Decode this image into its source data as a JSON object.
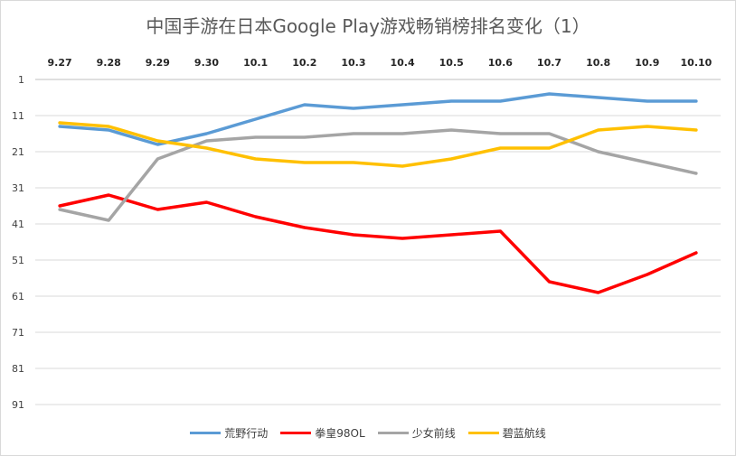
{
  "chart_data": {
    "type": "line",
    "title": "中国手游在日本Google Play游戏畅销榜排名变化（1）",
    "xlabel": "",
    "ylabel": "",
    "x": [
      "9.27",
      "9.28",
      "9.29",
      "9.30",
      "10.1",
      "10.2",
      "10.3",
      "10.4",
      "10.5",
      "10.6",
      "10.7",
      "10.8",
      "10.9",
      "10.10"
    ],
    "y_ticks": [
      1,
      11,
      21,
      31,
      41,
      51,
      61,
      71,
      81,
      91
    ],
    "ylim": [
      1,
      101
    ],
    "y_inverted": true,
    "x_axis_position": "top",
    "grid": true,
    "legend_position": "bottom",
    "series": [
      {
        "name": "荒野行动",
        "color": "#5b9bd5",
        "values": [
          14,
          15,
          19,
          16,
          12,
          8,
          9,
          8,
          7,
          7,
          5,
          6,
          7,
          7
        ]
      },
      {
        "name": "拳皇98OL",
        "color": "#ff0000",
        "values": [
          36,
          33,
          37,
          35,
          39,
          42,
          44,
          45,
          44,
          43,
          57,
          60,
          55,
          49
        ]
      },
      {
        "name": "少女前线",
        "color": "#a5a5a5",
        "values": [
          37,
          40,
          23,
          18,
          17,
          17,
          16,
          16,
          15,
          16,
          16,
          21,
          24,
          27
        ]
      },
      {
        "name": "碧蓝航线",
        "color": "#ffc000",
        "values": [
          13,
          14,
          18,
          20,
          23,
          24,
          24,
          25,
          23,
          20,
          20,
          15,
          14,
          15
        ]
      }
    ]
  }
}
